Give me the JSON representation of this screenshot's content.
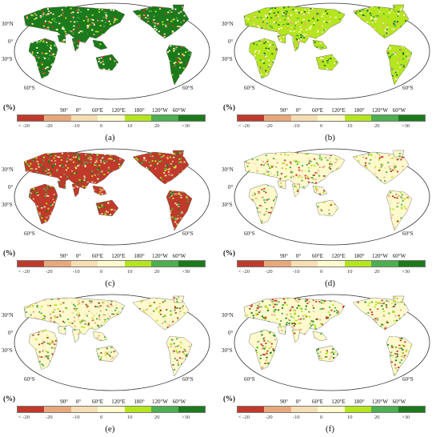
{
  "legend": {
    "unit": "(%)",
    "bins": [
      {
        "label": "< -20",
        "color": "#c0392b"
      },
      {
        "label": "-20",
        "color": "#e8a87c"
      },
      {
        "label": "-10",
        "color": "#f5deb3"
      },
      {
        "label": "0",
        "color": "#fffacd"
      },
      {
        "label": "10",
        "color": "#b5e61d"
      },
      {
        "label": "20",
        "color": "#4caf50"
      },
      {
        "label": ">30",
        "color": "#1b7a1b"
      }
    ]
  },
  "map_labels": {
    "lat_left": [
      "30°N",
      "0°",
      "30°S",
      "60°S"
    ],
    "lat_right": [
      "60°S"
    ],
    "lon_bottom": [
      "90°",
      "0°",
      "60°E",
      "120°E",
      "180°",
      "120°W",
      "60°W"
    ]
  },
  "panels": [
    {
      "id": "a",
      "caption": "(a)",
      "palette": [
        "#1b7a1b",
        "#4caf50",
        "#b5e61d",
        "#fffacd",
        "#f5deb3",
        "#e8a87c",
        "#c0392b"
      ],
      "dominant": "green"
    },
    {
      "id": "b",
      "caption": "(b)",
      "palette": [
        "#b5e61d",
        "#4caf50",
        "#fffacd",
        "#f5deb3",
        "#e8a87c",
        "#1b7a1b"
      ],
      "dominant": "light-green"
    },
    {
      "id": "c",
      "caption": "(c)",
      "palette": [
        "#c0392b",
        "#1b7a1b",
        "#4caf50",
        "#e8a87c",
        "#b5e61d",
        "#f5deb3"
      ],
      "dominant": "red-green"
    },
    {
      "id": "d",
      "caption": "(d)",
      "palette": [
        "#fffacd",
        "#f5deb3",
        "#b5e61d",
        "#e8a87c",
        "#4caf50",
        "#c0392b"
      ],
      "dominant": "beige"
    },
    {
      "id": "e",
      "caption": "(e)",
      "palette": [
        "#fffacd",
        "#f5deb3",
        "#b5e61d",
        "#e8a87c",
        "#a0522d",
        "#4caf50"
      ],
      "dominant": "beige"
    },
    {
      "id": "f",
      "caption": "(f)",
      "palette": [
        "#fffacd",
        "#c0392b",
        "#4caf50",
        "#b5e61d",
        "#e8a87c",
        "#1b7a1b"
      ],
      "dominant": "mixed"
    }
  ]
}
